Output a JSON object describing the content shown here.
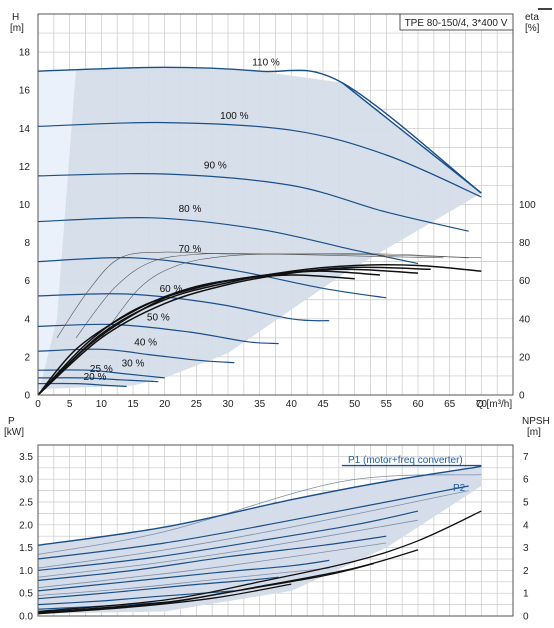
{
  "chart_data": [
    {
      "type": "line",
      "title": "TPE 80-150/4, 3*400 V",
      "xlabel": "Q [m³/h]",
      "ylabel_line1": "H",
      "ylabel_line2": "[m]",
      "y2label_line1": "eta",
      "y2label_line2": "[%]",
      "xlim": [
        0,
        75
      ],
      "ylim": [
        0,
        20
      ],
      "y2lim": [
        0,
        100
      ],
      "x_ticks": [
        0,
        5,
        10,
        15,
        20,
        25,
        30,
        35,
        40,
        45,
        50,
        55,
        60,
        65,
        70
      ],
      "y_ticks": [
        0,
        2,
        4,
        6,
        8,
        10,
        12,
        14,
        16,
        18
      ],
      "y2_ticks": [
        0,
        20,
        40,
        60,
        80,
        100
      ],
      "grid": true,
      "operating_range_color": "#d4dde9",
      "curve_color": "#1a4f8a",
      "speed_curves": [
        {
          "name": "110 %",
          "x": [
            0,
            20,
            35,
            48,
            70
          ],
          "y": [
            17.0,
            17.2,
            17.0,
            16.4,
            10.6
          ]
        },
        {
          "name": "100 %",
          "x": [
            0,
            20,
            40,
            55,
            70
          ],
          "y": [
            14.1,
            14.3,
            13.9,
            12.6,
            10.4
          ]
        },
        {
          "name": "90 %",
          "x": [
            0,
            20,
            40,
            55,
            68
          ],
          "y": [
            11.5,
            11.6,
            11.0,
            9.6,
            8.6
          ]
        },
        {
          "name": "80 %",
          "x": [
            0,
            18,
            35,
            50,
            60
          ],
          "y": [
            9.1,
            9.3,
            8.7,
            7.6,
            6.9
          ]
        },
        {
          "name": "70 %",
          "x": [
            0,
            15,
            30,
            45,
            55
          ],
          "y": [
            7.0,
            7.2,
            6.6,
            5.6,
            5.1
          ]
        },
        {
          "name": "60 %",
          "x": [
            0,
            14,
            28,
            40,
            46
          ],
          "y": [
            5.2,
            5.3,
            4.8,
            4.0,
            3.9
          ]
        },
        {
          "name": "50 %",
          "x": [
            0,
            12,
            24,
            33,
            38
          ],
          "y": [
            3.6,
            3.7,
            3.3,
            2.8,
            2.7
          ]
        },
        {
          "name": "40 %",
          "x": [
            0,
            10,
            18,
            26,
            31
          ],
          "y": [
            2.3,
            2.4,
            2.1,
            1.8,
            1.7
          ]
        },
        {
          "name": "30 %",
          "x": [
            0,
            8,
            14,
            20
          ],
          "y": [
            1.3,
            1.3,
            1.1,
            0.9
          ]
        },
        {
          "name": "25 %",
          "x": [
            0,
            7,
            13,
            19
          ],
          "y": [
            0.9,
            0.9,
            0.8,
            0.7
          ]
        },
        {
          "name": "20 %",
          "x": [
            0,
            6,
            11,
            14
          ],
          "y": [
            0.6,
            0.6,
            0.5,
            0.45
          ]
        }
      ],
      "efficiency_curves": [
        {
          "x": [
            0,
            10,
            20,
            30,
            40,
            50,
            60,
            70
          ],
          "y": [
            0,
            32,
            50,
            59,
            65,
            68,
            68,
            65
          ]
        },
        {
          "x": [
            0,
            10,
            20,
            30,
            40,
            50,
            62
          ],
          "y": [
            0,
            30,
            48,
            58,
            64,
            67,
            66
          ]
        },
        {
          "x": [
            0,
            8,
            16,
            26,
            36,
            48,
            60
          ],
          "y": [
            0,
            28,
            46,
            57,
            63,
            66,
            64
          ]
        },
        {
          "x": [
            0,
            8,
            16,
            24,
            34,
            44,
            54
          ],
          "y": [
            0,
            26,
            44,
            56,
            62,
            65,
            63
          ]
        },
        {
          "x": [
            0,
            6,
            14,
            22,
            30,
            40,
            50
          ],
          "y": [
            0,
            24,
            42,
            54,
            60,
            63,
            61
          ]
        }
      ],
      "efficiency_thin_curves": [
        {
          "x": [
            3,
            8,
            13,
            20,
            30,
            45,
            60,
            70
          ],
          "y": [
            30,
            55,
            72,
            75,
            74,
            74,
            73,
            72
          ]
        },
        {
          "x": [
            6,
            12,
            18,
            26,
            36,
            50,
            64
          ],
          "y": [
            30,
            56,
            70,
            74,
            74,
            73,
            72
          ]
        },
        {
          "x": [
            10,
            16,
            22,
            30,
            40,
            55,
            68
          ],
          "y": [
            30,
            56,
            68,
            73,
            74,
            74,
            72
          ]
        }
      ],
      "labels": [
        "110 %",
        "100 %",
        "90 %",
        "80 %",
        "70 %",
        "60 %",
        "50 %",
        "40 %",
        "30 %",
        "25 %",
        "20 %"
      ],
      "eta_ticks_labels": [
        "0",
        "20",
        "40",
        "60",
        "80",
        "100"
      ]
    },
    {
      "type": "line",
      "xlabel": "",
      "ylabel_line1": "P",
      "ylabel_line2": "[kW]",
      "y2label_line1": "NPSH",
      "y2label_line2": "[m]",
      "xlim": [
        0,
        75
      ],
      "ylim": [
        0,
        3.75
      ],
      "y2lim": [
        0,
        7.5
      ],
      "y_ticks": [
        0,
        0.5,
        1.0,
        1.5,
        2.0,
        2.5,
        3.0,
        3.5
      ],
      "y_tick_labels": [
        "0.0",
        "0.5",
        "1.0",
        "1.5",
        "2.0",
        "2.5",
        "3.0",
        "3.5"
      ],
      "y2_ticks": [
        0,
        1,
        2,
        3,
        4,
        5,
        6,
        7
      ],
      "grid": true,
      "series_names": [
        "P1 (motor+freq converter)",
        "P2"
      ],
      "power_curves_p1": [
        {
          "x": [
            0,
            20,
            40,
            55,
            70
          ],
          "y": [
            1.55,
            1.95,
            2.55,
            2.95,
            3.28
          ]
        },
        {
          "x": [
            0,
            20,
            40,
            55,
            68
          ],
          "y": [
            1.25,
            1.6,
            2.1,
            2.5,
            2.85
          ]
        },
        {
          "x": [
            0,
            18,
            35,
            50,
            60
          ],
          "y": [
            1.0,
            1.28,
            1.65,
            2.0,
            2.3
          ]
        },
        {
          "x": [
            0,
            15,
            30,
            45,
            55
          ],
          "y": [
            0.78,
            1.0,
            1.3,
            1.55,
            1.75
          ]
        },
        {
          "x": [
            0,
            14,
            28,
            40,
            46
          ],
          "y": [
            0.55,
            0.75,
            0.95,
            1.1,
            1.22
          ]
        },
        {
          "x": [
            0,
            12,
            24,
            33,
            38
          ],
          "y": [
            0.38,
            0.52,
            0.68,
            0.78,
            0.85
          ]
        },
        {
          "x": [
            0,
            10,
            18,
            26,
            31
          ],
          "y": [
            0.25,
            0.33,
            0.42,
            0.5,
            0.55
          ]
        },
        {
          "x": [
            0,
            8,
            14,
            20
          ],
          "y": [
            0.15,
            0.2,
            0.25,
            0.3
          ]
        }
      ],
      "power_curves_p2": [
        {
          "x": [
            0,
            20,
            48,
            70
          ],
          "y": [
            1.35,
            1.85,
            2.95,
            3.1
          ]
        },
        {
          "x": [
            0,
            20,
            40,
            68
          ],
          "y": [
            1.05,
            1.45,
            1.95,
            2.75
          ]
        },
        {
          "x": [
            0,
            18,
            35,
            60
          ],
          "y": [
            0.85,
            1.15,
            1.5,
            2.1
          ]
        },
        {
          "x": [
            0,
            15,
            30,
            55
          ],
          "y": [
            0.62,
            0.85,
            1.1,
            1.6
          ]
        },
        {
          "x": [
            0,
            14,
            28,
            46
          ],
          "y": [
            0.45,
            0.6,
            0.8,
            1.05
          ]
        }
      ],
      "npsh_curves": [
        {
          "x": [
            0,
            20,
            35,
            50,
            60,
            70
          ],
          "y": [
            0.1,
            0.35,
            0.75,
            1.2,
            1.65,
            2.3
          ]
        },
        {
          "x": [
            0,
            20,
            35,
            50,
            60
          ],
          "y": [
            0.08,
            0.3,
            0.65,
            1.05,
            1.45
          ]
        },
        {
          "x": [
            0,
            18,
            30,
            45,
            53
          ],
          "y": [
            0.06,
            0.25,
            0.52,
            0.88,
            1.15
          ]
        },
        {
          "x": [
            0,
            15,
            28,
            40
          ],
          "y": [
            0.05,
            0.2,
            0.4,
            0.7
          ]
        }
      ]
    }
  ]
}
